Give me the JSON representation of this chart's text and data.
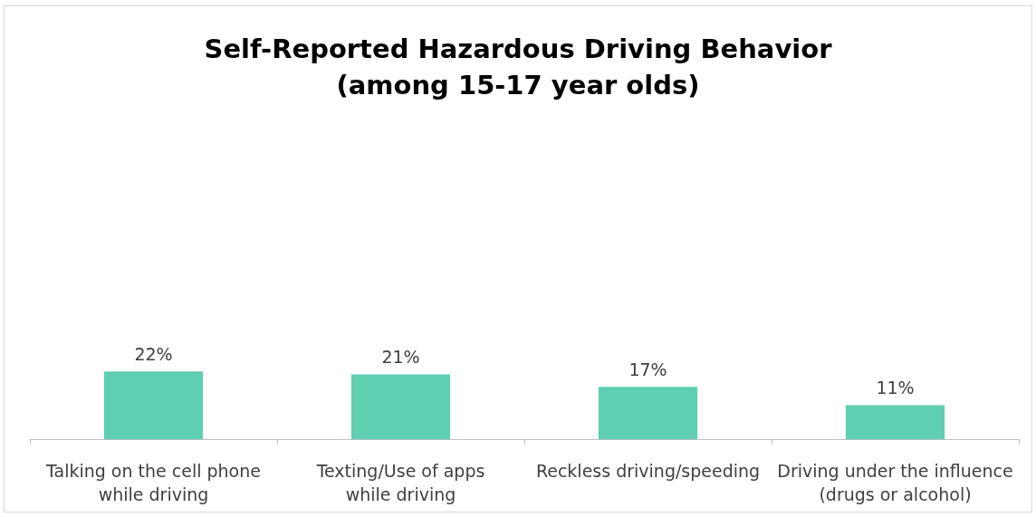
{
  "chart_data": {
    "type": "bar",
    "title": "Self-Reported Hazardous Driving Behavior\n(among 15-17 year olds)",
    "categories": [
      "Talking on the cell phone\nwhile driving",
      "Texting/Use of apps\nwhile driving",
      "Reckless driving/speeding",
      "Driving under the influence\n(drugs or alcohol)"
    ],
    "values": [
      22,
      21,
      17,
      11
    ],
    "color": "#5ecfb1",
    "value_labels": [
      "22%",
      "21%",
      "17%",
      "11%"
    ],
    "tick_labels": "x"
  }
}
